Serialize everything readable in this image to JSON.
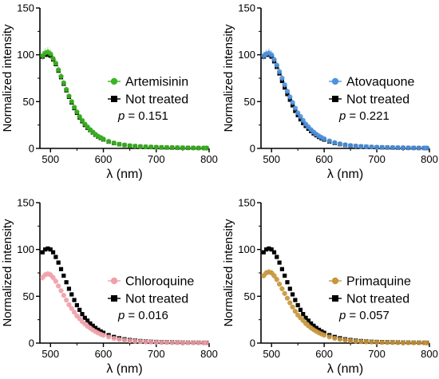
{
  "colors": {
    "axis": "#000000",
    "not_treated": "#000000",
    "artemisinin": "#3cb521",
    "atovaquone": "#4f93df",
    "chloroquine": "#f0a0a8",
    "primaquine": "#c8963c"
  },
  "chart_data": [
    {
      "type": "scatter",
      "title": "",
      "xlabel": "λ (nm)",
      "ylabel": "Normalized intensity",
      "xlim": [
        480,
        800
      ],
      "ylim": [
        0,
        150
      ],
      "xticks": [
        500,
        600,
        700,
        800
      ],
      "yticks": [
        0,
        50,
        100,
        150
      ],
      "grid": false,
      "legend_position": "right",
      "p_label": "p",
      "p_value": "= 0.151",
      "x": [
        485,
        490,
        495,
        500,
        505,
        510,
        515,
        520,
        525,
        530,
        535,
        540,
        545,
        550,
        555,
        560,
        565,
        570,
        575,
        580,
        585,
        590,
        595,
        600,
        610,
        620,
        630,
        640,
        650,
        660,
        670,
        680,
        690,
        700,
        710,
        720,
        730,
        740,
        750,
        760,
        770,
        780,
        790,
        795
      ],
      "series": [
        {
          "name": "Artemisinin",
          "color": "#3cb521",
          "marker": "circle",
          "values": [
            99,
            102,
            103,
            101,
            96,
            91,
            84,
            77,
            70,
            63,
            56,
            50,
            44,
            39,
            34,
            30,
            26,
            23,
            20,
            17.5,
            15,
            13,
            11.5,
            10,
            7.5,
            5.8,
            4.5,
            3.6,
            2.9,
            2.4,
            2,
            1.7,
            1.5,
            1.3,
            1.1,
            1,
            0.9,
            0.8,
            0.7,
            0.6,
            0.5,
            0.5,
            0.4,
            0.4
          ]
        },
        {
          "name": "Not treated",
          "color": "#000000",
          "marker": "square",
          "values": [
            98,
            100,
            100,
            99,
            95,
            90,
            83,
            76,
            69,
            62,
            55,
            49,
            43,
            38,
            33,
            29,
            25,
            22,
            19.5,
            17,
            14.5,
            12.5,
            11,
            9.5,
            7.2,
            5.6,
            4.4,
            3.5,
            2.8,
            2.3,
            1.9,
            1.6,
            1.4,
            1.2,
            1,
            0.9,
            0.8,
            0.7,
            0.6,
            0.5,
            0.5,
            0.4,
            0.4,
            0.3
          ]
        }
      ]
    },
    {
      "type": "scatter",
      "title": "",
      "xlabel": "λ (nm)",
      "ylabel": "Normalized intensity",
      "xlim": [
        480,
        800
      ],
      "ylim": [
        0,
        150
      ],
      "xticks": [
        500,
        600,
        700,
        800
      ],
      "yticks": [
        0,
        50,
        100,
        150
      ],
      "grid": false,
      "legend_position": "right",
      "p_label": "p",
      "p_value": "= 0.221",
      "x": [
        485,
        490,
        495,
        500,
        505,
        510,
        515,
        520,
        525,
        530,
        535,
        540,
        545,
        550,
        555,
        560,
        565,
        570,
        575,
        580,
        585,
        590,
        595,
        600,
        610,
        620,
        630,
        640,
        650,
        660,
        670,
        680,
        690,
        700,
        710,
        720,
        730,
        740,
        750,
        760,
        770,
        780,
        790,
        795
      ],
      "series": [
        {
          "name": "Atovaquone",
          "color": "#4f93df",
          "marker": "circle",
          "values": [
            99,
            101,
            102,
            100,
            95,
            89,
            82,
            75,
            68,
            61,
            55,
            49,
            43,
            38,
            34,
            30,
            26,
            23,
            20,
            17.5,
            15.2,
            13.3,
            11.7,
            10.3,
            8,
            6.2,
            4.9,
            3.9,
            3.1,
            2.5,
            2.1,
            1.8,
            1.5,
            1.3,
            1.1,
            1,
            0.9,
            0.8,
            0.7,
            0.6,
            0.5,
            0.5,
            0.4,
            0.4
          ]
        },
        {
          "name": "Not treated",
          "color": "#000000",
          "marker": "square",
          "values": [
            98,
            100,
            100,
            98,
            93,
            87,
            80,
            72,
            65,
            58,
            52,
            46,
            40,
            35.5,
            31,
            27,
            24,
            21,
            18.5,
            16,
            14,
            12.2,
            10.7,
            9.4,
            7.3,
            5.7,
            4.5,
            3.6,
            2.9,
            2.4,
            2,
            1.7,
            1.4,
            1.2,
            1,
            0.9,
            0.8,
            0.7,
            0.6,
            0.5,
            0.5,
            0.4,
            0.4,
            0.3
          ]
        }
      ]
    },
    {
      "type": "scatter",
      "title": "",
      "xlabel": "λ (nm)",
      "ylabel": "Normalized intensity",
      "xlim": [
        480,
        800
      ],
      "ylim": [
        0,
        150
      ],
      "xticks": [
        500,
        600,
        700,
        800
      ],
      "yticks": [
        0,
        50,
        100,
        150
      ],
      "grid": false,
      "legend_position": "right",
      "p_label": "p",
      "p_value": "= 0.016",
      "x": [
        485,
        490,
        495,
        500,
        505,
        510,
        515,
        520,
        525,
        530,
        535,
        540,
        545,
        550,
        555,
        560,
        565,
        570,
        575,
        580,
        585,
        590,
        595,
        600,
        610,
        620,
        630,
        640,
        650,
        660,
        670,
        680,
        690,
        700,
        710,
        720,
        730,
        740,
        750,
        760,
        770,
        780,
        790,
        795
      ],
      "series": [
        {
          "name": "Chloroquine",
          "color": "#f0a0a8",
          "marker": "circle",
          "values": [
            70,
            73,
            74,
            73,
            70,
            66,
            61,
            56,
            51,
            46,
            41,
            37,
            33,
            29,
            26,
            23,
            20.5,
            18,
            16,
            14,
            12.3,
            10.8,
            9.5,
            8.4,
            6.5,
            5,
            3.9,
            3.1,
            2.5,
            2,
            1.6,
            1.3,
            1.1,
            0.9,
            0.8,
            0.7,
            0.6,
            0.5,
            0.4,
            0.4,
            0.3,
            0.3,
            0.3,
            0.2
          ]
        },
        {
          "name": "Not treated",
          "color": "#000000",
          "marker": "square",
          "values": [
            97,
            100,
            101,
            100,
            97,
            92,
            86,
            79,
            72,
            65,
            58,
            52,
            46,
            40.5,
            35.5,
            31,
            27,
            24,
            21,
            18.5,
            16.2,
            14.2,
            12.5,
            11,
            8.5,
            6.6,
            5.2,
            4.1,
            3.3,
            2.7,
            2.2,
            1.8,
            1.5,
            1.3,
            1.1,
            1,
            0.9,
            0.8,
            0.7,
            0.6,
            0.5,
            0.5,
            0.4,
            0.4
          ]
        }
      ]
    },
    {
      "type": "scatter",
      "title": "",
      "xlabel": "λ (nm)",
      "ylabel": "Normalized intensity",
      "xlim": [
        480,
        800
      ],
      "ylim": [
        0,
        150
      ],
      "xticks": [
        500,
        600,
        700,
        800
      ],
      "yticks": [
        0,
        50,
        100,
        150
      ],
      "grid": false,
      "legend_position": "right",
      "p_label": "p",
      "p_value": "= 0.057",
      "x": [
        485,
        490,
        495,
        500,
        505,
        510,
        515,
        520,
        525,
        530,
        535,
        540,
        545,
        550,
        555,
        560,
        565,
        570,
        575,
        580,
        585,
        590,
        595,
        600,
        610,
        620,
        630,
        640,
        650,
        660,
        670,
        680,
        690,
        700,
        710,
        720,
        730,
        740,
        750,
        760,
        770,
        780,
        790,
        795
      ],
      "series": [
        {
          "name": "Primaquine",
          "color": "#c8963c",
          "marker": "circle",
          "values": [
            72,
            75,
            76,
            75,
            72,
            68,
            63,
            58,
            53,
            48,
            43,
            38.5,
            34,
            30,
            27,
            24,
            21,
            18.5,
            16.3,
            14.3,
            12.6,
            11,
            9.7,
            8.5,
            6.6,
            5.1,
            4,
            3.2,
            2.5,
            2,
            1.6,
            1.3,
            1.1,
            0.9,
            0.8,
            0.7,
            0.6,
            0.5,
            0.4,
            0.4,
            0.3,
            0.3,
            0.3,
            0.2
          ]
        },
        {
          "name": "Not treated",
          "color": "#000000",
          "marker": "square",
          "values": [
            97,
            100,
            101,
            100,
            97,
            92,
            86,
            79,
            72,
            65,
            58,
            52,
            46,
            40.5,
            35.5,
            31,
            27,
            24,
            21,
            18.5,
            16.2,
            14.2,
            12.5,
            11,
            8.5,
            6.6,
            5.2,
            4.1,
            3.3,
            2.7,
            2.2,
            1.8,
            1.5,
            1.3,
            1.1,
            1,
            0.9,
            0.8,
            0.7,
            0.6,
            0.5,
            0.5,
            0.4,
            0.4
          ]
        }
      ]
    }
  ]
}
